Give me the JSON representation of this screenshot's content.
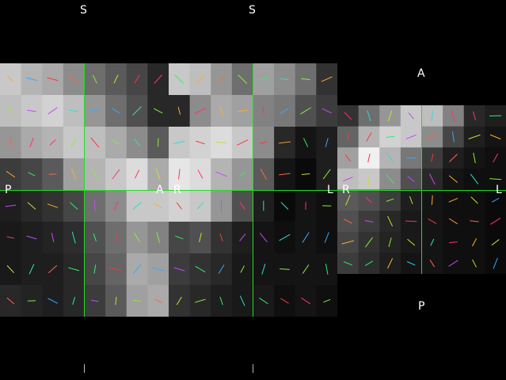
{
  "viewer": {
    "views": [
      {
        "name": "sagittal-view",
        "labels": {
          "top": "S",
          "left": "P",
          "right": "A"
        },
        "bottom_marker": "I"
      },
      {
        "name": "coronal-view",
        "labels": {
          "top": "S",
          "left": "R",
          "right": "L"
        },
        "bottom_marker": "I"
      },
      {
        "name": "axial-view",
        "labels": {
          "top": "A",
          "left": "R",
          "right": "L",
          "bottom": "P"
        }
      }
    ],
    "crosshair_color": "#22dd22",
    "background_color": "#000000",
    "fiber_colors": [
      "#ff3366",
      "#ff3344",
      "#ff6644",
      "#ffaa33",
      "#ccdd33",
      "#88ee33",
      "#33ee66",
      "#33ddcc",
      "#33aaff",
      "#cc44ff"
    ]
  }
}
